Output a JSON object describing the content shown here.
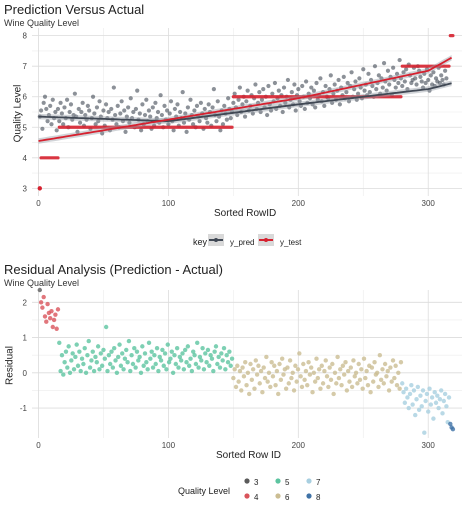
{
  "chart_data": [
    {
      "type": "scatter",
      "title": "Prediction Versus Actual",
      "subtitle": "Wine Quality Level",
      "xlabel": "Sorted RowID",
      "ylabel": "Quality Level",
      "xlim": [
        -5,
        326
      ],
      "ylim": [
        2.75,
        8.25
      ],
      "xticks": [
        0,
        100,
        200,
        300
      ],
      "yticks": [
        3,
        4,
        5,
        6,
        7,
        8
      ],
      "grid": true,
      "legend": {
        "title": "key",
        "position": "bottom",
        "entries": [
          "y_pred",
          "y_test"
        ]
      },
      "series": [
        {
          "name": "y_test",
          "color": "#d6212f",
          "step_segments": [
            {
              "x_start": 1,
              "x_end": 1,
              "y": 3
            },
            {
              "x_start": 2,
              "x_end": 15,
              "y": 4
            },
            {
              "x_start": 16,
              "x_end": 149,
              "y": 5
            },
            {
              "x_start": 150,
              "x_end": 279,
              "y": 6
            },
            {
              "x_start": 280,
              "x_end": 316,
              "y": 7
            },
            {
              "x_start": 317,
              "x_end": 319,
              "y": 8
            }
          ],
          "smooth_y_at": {
            "x": [
              0,
              100,
              200,
              300,
              319
            ],
            "y": [
              4.55,
              5.25,
              5.95,
              6.85,
              7.3
            ]
          }
        },
        {
          "name": "y_pred",
          "color": "#404854",
          "points_y": [
            5.35,
            5.55,
            4.95,
            5.8,
            6.0,
            5.6,
            5.2,
            5.4,
            5.7,
            5.1,
            5.9,
            5.3,
            5.5,
            4.9,
            5.6,
            5.2,
            5.8,
            5.45,
            5.1,
            5.65,
            5.3,
            5.9,
            5.0,
            5.5,
            5.75,
            5.25,
            5.4,
            6.1,
            5.35,
            4.85,
            5.6,
            5.15,
            5.5,
            5.8,
            5.05,
            5.4,
            5.25,
            5.7,
            5.55,
            4.95,
            5.3,
            6.0,
            5.45,
            5.1,
            5.65,
            5.2,
            5.85,
            5.35,
            4.8,
            5.55,
            5.05,
            5.75,
            5.3,
            5.5,
            4.9,
            5.6,
            5.25,
            6.3,
            5.4,
            5.1,
            5.7,
            5.0,
            5.45,
            5.85,
            5.2,
            5.55,
            4.85,
            5.35,
            5.65,
            5.15,
            5.95,
            5.3,
            5.5,
            5.0,
            5.6,
            6.2,
            5.25,
            5.45,
            4.9,
            5.75,
            5.1,
            5.4,
            5.9,
            5.2,
            5.55,
            5.35,
            4.95,
            5.65,
            5.05,
            5.8,
            5.3,
            5.5,
            5.15,
            6.05,
            5.4,
            5.0,
            5.7,
            5.25,
            5.55,
            5.1,
            5.45,
            5.85,
            5.2,
            4.9,
            5.6,
            5.35,
            5.75,
            5.05,
            5.5,
            5.3,
            6.15,
            5.15,
            5.45,
            4.85,
            5.65,
            5.25,
            5.9,
            5.4,
            5.1,
            5.55,
            5.0,
            5.7,
            5.35,
            5.2,
            5.8,
            5.45,
            4.95,
            5.6,
            5.3,
            5.15,
            5.75,
            5.5,
            5.05,
            5.65,
            6.25,
            5.4,
            5.2,
            5.85,
            5.35,
            4.9,
            5.55,
            5.1,
            5.7,
            5.45,
            5.25,
            5.95,
            5.6,
            5.3,
            5.5,
            5.8,
            6.1,
            5.65,
            5.4,
            5.9,
            6.3,
            5.5,
            5.75,
            6.0,
            5.35,
            5.85,
            6.2,
            5.55,
            5.7,
            6.05,
            5.45,
            5.95,
            6.4,
            5.6,
            5.8,
            6.15,
            5.5,
            5.9,
            6.25,
            5.65,
            6.0,
            5.4,
            6.35,
            5.75,
            5.55,
            6.1,
            5.85,
            6.45,
            5.6,
            5.95,
            6.2,
            5.7,
            6.05,
            5.5,
            6.3,
            5.8,
            6.0,
            6.55,
            5.65,
            5.9,
            6.15,
            5.75,
            6.4,
            5.55,
            6.05,
            6.25,
            5.85,
            5.7,
            6.35,
            6.0,
            5.6,
            6.5,
            5.8,
            6.1,
            5.95,
            6.3,
            5.75,
            6.2,
            5.65,
            6.45,
            5.9,
            6.05,
            6.6,
            5.85,
            6.15,
            5.7,
            6.35,
            6.0,
            5.95,
            6.25,
            6.7,
            5.8,
            6.1,
            6.4,
            5.9,
            6.2,
            6.55,
            5.75,
            6.3,
            6.05,
            6.65,
            5.95,
            6.15,
            6.45,
            5.85,
            6.35,
            6.8,
            6.0,
            6.25,
            6.5,
            5.9,
            6.1,
            6.6,
            6.3,
            5.95,
            6.9,
            6.2,
            6.4,
            6.05,
            6.75,
            6.15,
            6.55,
            6.35,
            6.0,
            7.0,
            6.25,
            6.45,
            6.7,
            6.1,
            6.6,
            6.3,
            7.1,
            6.5,
            6.2,
            6.85,
            6.4,
            6.65,
            6.05,
            6.95,
            6.55,
            6.3,
            6.75,
            6.45,
            7.2,
            6.6,
            6.35,
            6.8,
            6.5,
            6.9,
            6.25,
            7.05,
            6.7,
            6.45,
            6.55,
            6.95,
            6.6,
            6.4,
            7.0,
            6.85,
            6.65,
            6.5,
            6.3,
            6.75,
            6.45,
            6.9,
            6.55,
            6.2,
            6.7,
            6.4,
            6.8,
            6.35,
            6.6,
            6.5,
            6.95,
            6.45,
            6.7,
            6.55,
            6.4,
            6.85,
            6.6
          ],
          "smooth_y_at": {
            "x": [
              0,
              100,
              200,
              300,
              319
            ],
            "y": [
              5.35,
              5.2,
              5.75,
              6.25,
              6.45
            ]
          }
        }
      ]
    },
    {
      "type": "scatter",
      "title": "Residual Analysis (Prediction - Actual)",
      "subtitle": "Wine Quality Level",
      "xlabel": "Sorted Row ID",
      "ylabel": "Residual",
      "xlim": [
        -5,
        326
      ],
      "ylim": [
        -1.85,
        2.35
      ],
      "xticks": [
        0,
        100,
        200,
        300
      ],
      "yticks": [
        -1,
        0,
        1,
        2
      ],
      "grid": true,
      "legend": {
        "title": "Quality Level",
        "position": "bottom",
        "entries": [
          {
            "label": "3",
            "color": "#5a5a5a"
          },
          {
            "label": "4",
            "color": "#d9545b"
          },
          {
            "label": "5",
            "color": "#5cc4a0"
          },
          {
            "label": "6",
            "color": "#cbbd92"
          },
          {
            "label": "7",
            "color": "#a8cfe0"
          },
          {
            "label": "8",
            "color": "#3f72a6"
          }
        ]
      },
      "groups": [
        {
          "level": "3",
          "x_start": 1,
          "residuals": [
            2.35
          ]
        },
        {
          "level": "4",
          "x_start": 2,
          "residuals": [
            2.0,
            1.85,
            2.15,
            1.6,
            1.45,
            1.95,
            1.7,
            1.55,
            1.75,
            1.3,
            1.5,
            1.65,
            1.25,
            1.8
          ]
        },
        {
          "level": "5",
          "x_start": 16,
          "residuals": [
            0.85,
            0.05,
            0.5,
            -0.05,
            0.3,
            0.6,
            0.15,
            0.75,
            0.0,
            0.35,
            0.55,
            0.1,
            0.45,
            0.8,
            0.2,
            0.6,
            0.05,
            0.4,
            0.25,
            0.7,
            0.0,
            0.5,
            0.9,
            0.15,
            0.35,
            0.6,
            0.05,
            0.45,
            0.3,
            0.75,
            0.1,
            0.55,
            0.2,
            0.65,
            0.4,
            1.3,
            0.05,
            0.5,
            0.25,
            0.6,
            0.15,
            0.7,
            0.35,
            0.0,
            0.45,
            0.8,
            0.2,
            0.55,
            0.1,
            0.4,
            0.65,
            0.3,
            0.9,
            0.05,
            0.5,
            0.25,
            0.7,
            0.15,
            0.6,
            0.35,
            0.45,
            0.0,
            0.75,
            0.2,
            0.55,
            0.3,
            0.1,
            0.85,
            0.4,
            0.6,
            0.15,
            0.5,
            0.25,
            0.7,
            0.05,
            0.45,
            0.35,
            0.65,
            0.2,
            0.55,
            0.1,
            0.8,
            0.3,
            0.4,
            0.6,
            0.0,
            0.5,
            0.25,
            0.7,
            0.15,
            0.45,
            0.35,
            0.55,
            0.1,
            0.65,
            0.3,
            0.75,
            0.2,
            0.4,
            0.05,
            0.6,
            0.5,
            0.25,
            0.85,
            0.15,
            0.45,
            0.35,
            0.7,
            0.1,
            0.55,
            0.3,
            0.65,
            0.2,
            0.5,
            0.4,
            0.05,
            0.6,
            0.75,
            0.25,
            0.45,
            0.15,
            0.55,
            0.35,
            0.7,
            0.1,
            0.5,
            0.3,
            0.6,
            0.2,
            0.4
          ],
          "x_end": 149
        },
        {
          "level": "6",
          "x_start": 150,
          "residuals": [
            -0.15,
            0.1,
            -0.4,
            0.2,
            -0.25,
            0.05,
            -0.5,
            0.15,
            -0.1,
            0.3,
            -0.35,
            0.0,
            -0.6,
            0.25,
            -0.2,
            0.1,
            -0.45,
            0.35,
            -0.05,
            0.2,
            -0.3,
            0.05,
            -0.55,
            0.15,
            -0.15,
            0.45,
            -0.25,
            0.0,
            -0.4,
            0.3,
            -0.1,
            0.2,
            -0.35,
            0.05,
            -0.6,
            0.25,
            -0.2,
            0.4,
            -0.05,
            0.1,
            -0.45,
            0.15,
            -0.3,
            0.35,
            -0.15,
            0.0,
            -0.5,
            0.2,
            -0.25,
            0.1,
            0.55,
            -0.1,
            -0.4,
            0.25,
            -0.2,
            0.05,
            -0.35,
            0.3,
            -0.05,
            0.15,
            -0.55,
            0.0,
            -0.25,
            0.4,
            -0.15,
            0.1,
            -0.45,
            0.2,
            -0.3,
            0.05,
            0.35,
            -0.1,
            -0.4,
            0.15,
            -0.2,
            0.25,
            -0.6,
            0.0,
            -0.3,
            0.45,
            -0.15,
            0.1,
            -0.35,
            0.2,
            -0.05,
            0.3,
            -0.5,
            0.05,
            -0.25,
            0.15,
            -0.4,
            0.35,
            -0.1,
            0.0,
            -0.3,
            0.25,
            -0.2,
            0.1,
            -0.45,
            0.4,
            -0.15,
            0.05,
            -0.35,
            0.2,
            -0.55,
            0.15,
            -0.25,
            0.3,
            -0.05,
            0.0,
            -0.4,
            0.5,
            -0.2,
            0.1,
            -0.3,
            0.25,
            -0.1,
            0.05,
            -0.5,
            0.15,
            -0.25,
            0.35,
            -0.15,
            0.2,
            -0.35,
            0.0,
            -0.45,
            0.3
          ],
          "x_end": 279
        },
        {
          "level": "7",
          "x_start": 280,
          "residuals": [
            -0.3,
            -0.55,
            -0.85,
            -0.45,
            -0.7,
            -1.0,
            -0.6,
            -0.35,
            -0.9,
            -0.5,
            -1.2,
            -0.75,
            -0.4,
            -1.05,
            -0.65,
            -0.95,
            -0.5,
            -1.7,
            -0.8,
            -0.6,
            -1.1,
            -0.45,
            -0.9,
            -0.7,
            -1.3,
            -0.55,
            -0.85,
            -0.65,
            -1.0,
            -0.75,
            -0.5,
            -1.15,
            -0.8,
            -0.6,
            -0.95,
            -1.4,
            -0.7
          ]
        },
        {
          "level": "8",
          "x_start": 317,
          "residuals": [
            -1.45,
            -1.55,
            -1.6
          ]
        }
      ]
    }
  ]
}
